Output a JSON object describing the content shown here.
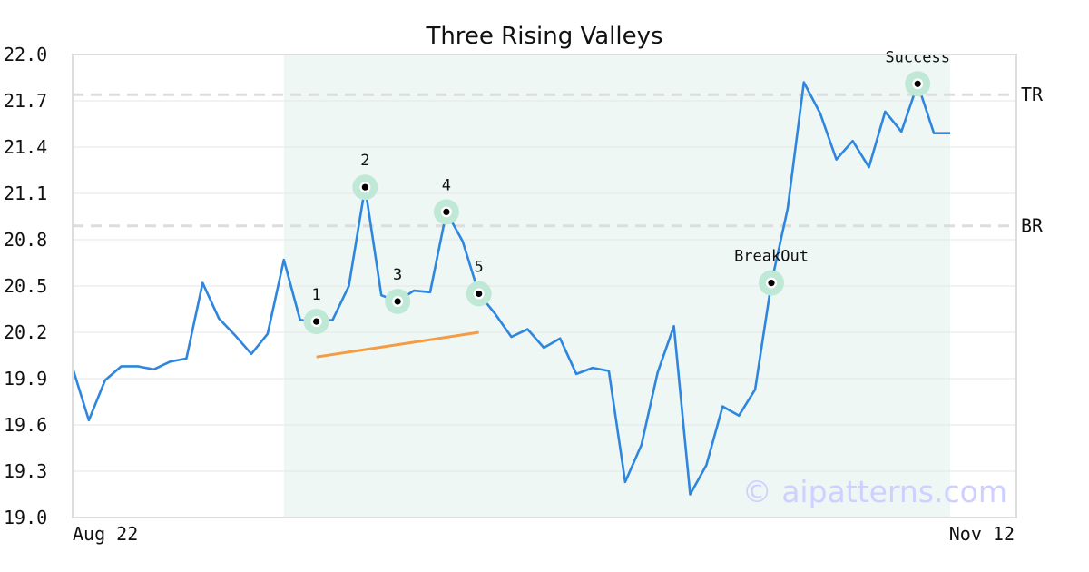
{
  "chart_data": {
    "type": "line",
    "title": "Three Rising Valleys",
    "xlabel": "",
    "ylabel": "",
    "ylim": [
      19.0,
      22.0
    ],
    "yticks": [
      "19.0",
      "19.3",
      "19.6",
      "19.9",
      "20.2",
      "20.5",
      "20.8",
      "21.1",
      "21.4",
      "21.7",
      "22.0"
    ],
    "x_start_label": "Aug 22",
    "x_end_label": "Nov 12",
    "grid": "horizontal",
    "series": [
      {
        "color": "#2e86de",
        "values": [
          19.97,
          19.63,
          19.89,
          19.98,
          19.98,
          19.96,
          20.01,
          20.03,
          20.52,
          20.29,
          20.18,
          20.06,
          20.19,
          20.67,
          20.28,
          20.27,
          20.28,
          20.5,
          21.14,
          20.44,
          20.4,
          20.47,
          20.46,
          20.98,
          20.79,
          20.45,
          20.32,
          20.17,
          20.22,
          20.1,
          20.16,
          19.93,
          19.97,
          19.95,
          19.23,
          19.47,
          19.94,
          20.24,
          19.15,
          19.34,
          19.72,
          19.66,
          19.83,
          20.52,
          21.0,
          21.82,
          21.62,
          21.32,
          21.44,
          21.27,
          21.63,
          21.5,
          21.81,
          21.49,
          21.49
        ]
      }
    ],
    "pattern_region": {
      "start_index": 13,
      "end_index": 54,
      "color": "#e8f5f0"
    },
    "levels": [
      {
        "label": "TR",
        "value": 21.74
      },
      {
        "label": "BR",
        "value": 20.89
      }
    ],
    "markers": [
      {
        "label": "1",
        "index": 15,
        "value": 20.27
      },
      {
        "label": "2",
        "index": 18,
        "value": 21.14
      },
      {
        "label": "3",
        "index": 20,
        "value": 20.4
      },
      {
        "label": "4",
        "index": 23,
        "value": 20.98
      },
      {
        "label": "5",
        "index": 25,
        "value": 20.45
      },
      {
        "label": "BreakOut",
        "index": 43,
        "value": 20.52
      },
      {
        "label": "Success",
        "index": 52,
        "value": 21.81
      }
    ],
    "trendline": {
      "from": {
        "index": 15,
        "value": 20.04
      },
      "to": {
        "index": 25,
        "value": 20.2
      },
      "color": "#f59b42"
    },
    "watermark": "© aipatterns.com",
    "colors": {
      "line": "#2e86de",
      "marker_halo": "#bfe8d7",
      "region": "#eef7f3",
      "level": "#dddddd",
      "watermark": "#cfd0ff"
    }
  }
}
